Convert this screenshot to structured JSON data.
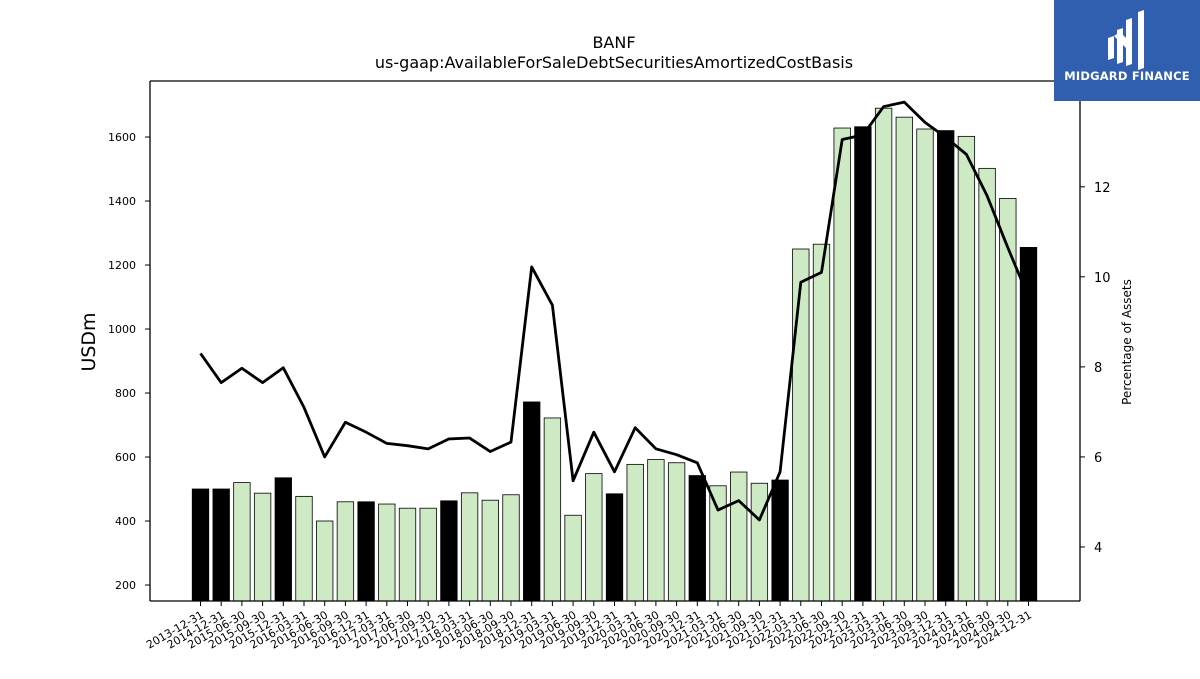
{
  "logo": {
    "text": "MIDGARD FINANCE",
    "background": "#2f5fae"
  },
  "chart_data": {
    "type": "bar",
    "title": "BANF",
    "subtitle": "us-gaap:AvailableForSaleDebtSecuritiesAmortizedCostBasis",
    "ylabel": "USDm",
    "y2label": "Percentage of Assets",
    "ylim": [
      150,
      1775
    ],
    "y2lim": [
      2.8,
      14.35
    ],
    "yticks": [
      200,
      400,
      600,
      800,
      1000,
      1200,
      1400,
      1600
    ],
    "y2ticks": [
      4,
      6,
      8,
      10,
      12
    ],
    "grid": false,
    "colors": {
      "annual_bar": "#000000",
      "quarter_bar": "#cdeac5",
      "line": "#000000"
    },
    "categories": [
      "2013-12-31",
      "2014-12-31",
      "2015-06-30",
      "2015-09-30",
      "2015-12-31",
      "2016-03-31",
      "2016-06-30",
      "2016-09-30",
      "2016-12-31",
      "2017-03-31",
      "2017-06-30",
      "2017-09-30",
      "2017-12-31",
      "2018-03-31",
      "2018-06-30",
      "2018-09-30",
      "2018-12-31",
      "2019-03-31",
      "2019-06-30",
      "2019-09-30",
      "2019-12-31",
      "2020-03-31",
      "2020-06-30",
      "2020-09-30",
      "2020-12-31",
      "2021-03-31",
      "2021-06-30",
      "2021-09-30",
      "2021-12-31",
      "2022-03-31",
      "2022-06-30",
      "2022-09-30",
      "2022-12-31",
      "2023-03-31",
      "2023-06-30",
      "2023-09-30",
      "2023-12-31",
      "2024-03-31",
      "2024-06-30",
      "2024-09-30",
      "2024-12-31"
    ],
    "series": [
      {
        "values": [
          500,
          500,
          520,
          487,
          535,
          477,
          400,
          460,
          460,
          453,
          440,
          440,
          463,
          488,
          465,
          482,
          772,
          722,
          418,
          548,
          485,
          577,
          592,
          582,
          542,
          510,
          553,
          518,
          528,
          1250,
          1265,
          1628,
          1632,
          1690,
          1662,
          1625,
          1620,
          1602,
          1502,
          1408,
          1255
        ]
      },
      {
        "values": [
          8.3,
          7.65,
          7.97,
          7.65,
          7.98,
          7.1,
          6.0,
          6.77,
          6.55,
          6.3,
          6.25,
          6.18,
          6.4,
          6.42,
          6.12,
          6.33,
          10.22,
          9.37,
          5.47,
          6.55,
          5.67,
          6.65,
          6.18,
          6.05,
          5.87,
          4.82,
          5.03,
          4.6,
          5.67,
          9.88,
          10.1,
          13.05,
          13.15,
          13.78,
          13.88,
          13.43,
          13.1,
          12.72,
          11.8,
          10.65,
          9.55
        ]
      }
    ],
    "annual_flags": [
      1,
      1,
      0,
      0,
      1,
      0,
      0,
      0,
      1,
      0,
      0,
      0,
      1,
      0,
      0,
      0,
      1,
      0,
      0,
      0,
      1,
      0,
      0,
      0,
      1,
      0,
      0,
      0,
      1,
      0,
      0,
      0,
      1,
      0,
      0,
      0,
      1,
      0,
      0,
      0,
      1
    ]
  }
}
